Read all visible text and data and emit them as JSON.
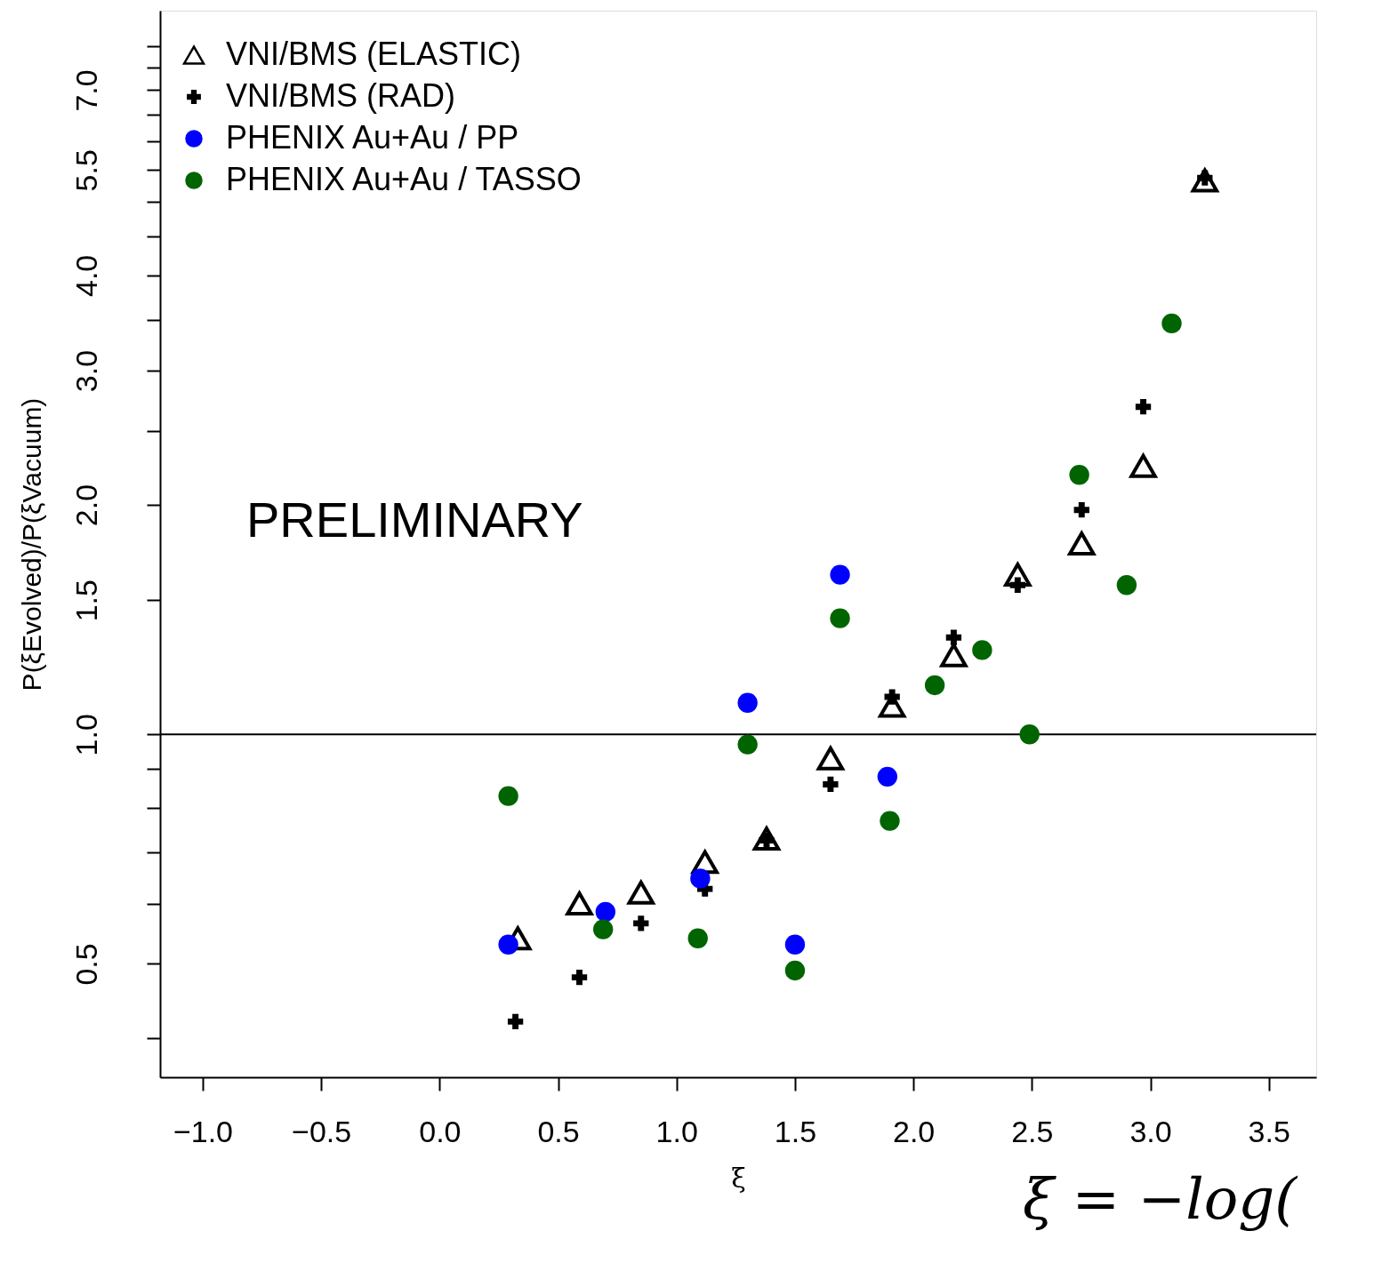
{
  "chart_data": {
    "type": "scatter",
    "xlabel": "ξ",
    "ylabel": "P(ξEvolved)/P(ξVacuum)",
    "log": "y",
    "grid": false,
    "legend": "top left",
    "xlim": [
      -1.18,
      3.7
    ],
    "xticks": [
      {
        "value": -1.0,
        "label": "−1.0"
      },
      {
        "value": -0.5,
        "label": "−0.5"
      },
      {
        "value": 0,
        "label": "0.0"
      },
      {
        "value": 0.5,
        "label": "0.5"
      },
      {
        "value": 1.0,
        "label": "1.0"
      },
      {
        "value": 1.5,
        "label": "1.5"
      },
      {
        "value": 2.0,
        "label": "2.0"
      },
      {
        "value": 2.5,
        "label": "2.5"
      },
      {
        "value": 3.0,
        "label": "3.0"
      },
      {
        "value": 3.5,
        "label": "3.5"
      }
    ],
    "ylim": [
      0.355,
      8.9
    ],
    "yticks": [
      {
        "value": 0.4,
        "label": null
      },
      0.5,
      {
        "value": 0.6,
        "label": null
      },
      {
        "value": 0.7,
        "label": null
      },
      {
        "value": 0.8,
        "label": null
      },
      {
        "value": 0.9,
        "label": null
      },
      {
        "value": 1.0,
        "label": "1.0"
      },
      1.5,
      {
        "value": 2.0,
        "label": "2.0"
      },
      {
        "value": 2.5,
        "label": null
      },
      {
        "value": 3.0,
        "label": "3.0"
      },
      {
        "value": 3.5,
        "label": null
      },
      {
        "value": 4.0,
        "label": "4.0"
      },
      {
        "value": 4.5,
        "label": null
      },
      {
        "value": 5.0,
        "label": null
      },
      5.5,
      {
        "value": 6.0,
        "label": null
      },
      {
        "value": 6.5,
        "label": null
      },
      {
        "value": 7.0,
        "label": "7.0"
      },
      {
        "value": 7.5,
        "label": null
      },
      {
        "value": 8.0,
        "label": null
      }
    ],
    "ref_lines": [
      {
        "axis": "y",
        "value": 1.0,
        "color": "#000000"
      }
    ],
    "annotations": [
      "PRELIMINARY",
      "ξ = −log("
    ],
    "series": [
      {
        "name": "VNI/BMS (ELASTIC)",
        "color": "#000000",
        "marker": "triangle",
        "x": [
          0.33,
          0.59,
          0.85,
          1.12,
          1.38,
          1.65,
          1.91,
          2.17,
          2.44,
          2.71,
          2.97,
          3.23
        ],
        "values": [
          0.54,
          0.6,
          0.62,
          0.68,
          0.73,
          0.93,
          1.09,
          1.27,
          1.62,
          1.78,
          2.25,
          5.33
        ]
      },
      {
        "name": "VNI/BMS (RAD)",
        "color": "#000000",
        "marker": "cross",
        "x": [
          0.32,
          0.59,
          0.85,
          1.12,
          1.38,
          1.65,
          1.91,
          2.17,
          2.44,
          2.71,
          2.97,
          3.23
        ],
        "values": [
          0.42,
          0.48,
          0.565,
          0.627,
          0.726,
          0.86,
          1.12,
          1.34,
          1.57,
          1.97,
          2.69,
          5.37
        ]
      },
      {
        "name": "PHENIX Au+Au / PP",
        "color": "#0000ff",
        "marker": "circle",
        "x": [
          0.29,
          0.7,
          1.1,
          1.3,
          1.5,
          1.69,
          1.89
        ],
        "values": [
          0.53,
          0.585,
          0.647,
          1.1,
          0.53,
          1.62,
          0.88
        ]
      },
      {
        "name": "PHENIX Au+Au / TASSO",
        "color": "#006400",
        "marker": "circle",
        "x": [
          0.29,
          0.69,
          1.09,
          1.3,
          1.5,
          1.69,
          1.9,
          2.09,
          2.29,
          2.49,
          2.7,
          2.9,
          3.09
        ],
        "values": [
          0.83,
          0.555,
          0.54,
          0.97,
          0.49,
          1.42,
          0.77,
          1.16,
          1.29,
          1.0,
          2.19,
          1.57,
          3.46
        ]
      }
    ]
  }
}
